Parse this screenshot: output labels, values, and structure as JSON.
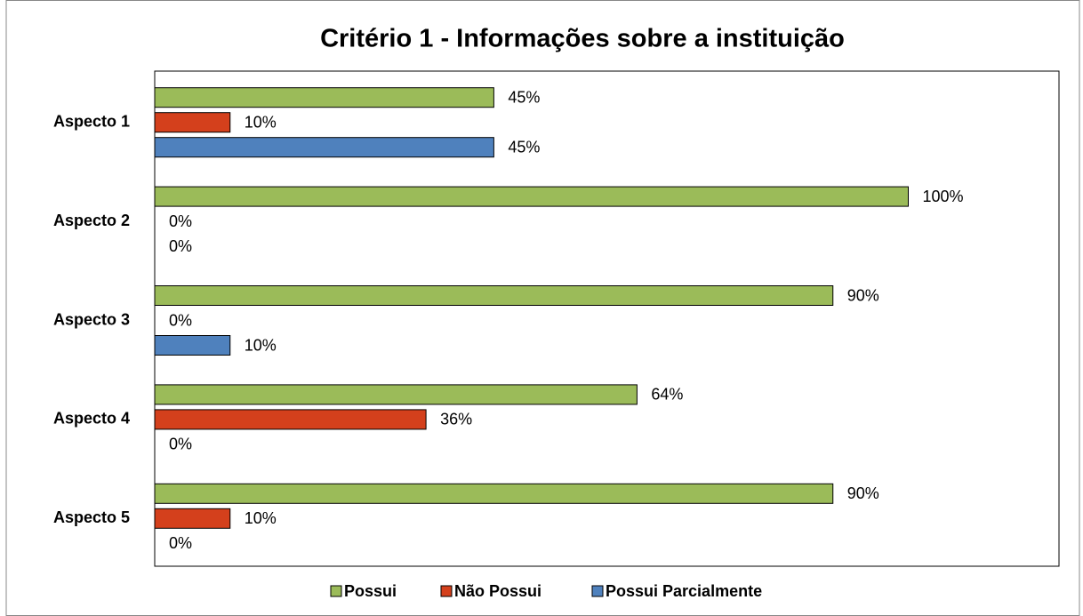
{
  "chart_data": {
    "type": "bar",
    "orientation": "horizontal",
    "title": "Critério 1 - Informações sobre a instituição",
    "categories": [
      "Aspecto 1",
      "Aspecto 2",
      "Aspecto 3",
      "Aspecto 4",
      "Aspecto 5"
    ],
    "series": [
      {
        "name": "Possui",
        "color": "#9bbb59",
        "values": [
          45,
          100,
          90,
          64,
          90
        ],
        "value_labels": [
          "45%",
          "100%",
          "90%",
          "64%",
          "90%"
        ]
      },
      {
        "name": "Não Possui",
        "color": "#d4401c",
        "values": [
          10,
          0,
          0,
          36,
          10
        ],
        "value_labels": [
          "10%",
          "0%",
          "0%",
          "36%",
          "10%"
        ]
      },
      {
        "name": "Possui Parcialmente",
        "color": "#4f81bd",
        "values": [
          45,
          0,
          10,
          0,
          0
        ],
        "value_labels": [
          "45%",
          "0%",
          "10%",
          "0%",
          "0%"
        ]
      }
    ],
    "xlim": [
      0,
      120
    ],
    "legend": "bottom"
  }
}
